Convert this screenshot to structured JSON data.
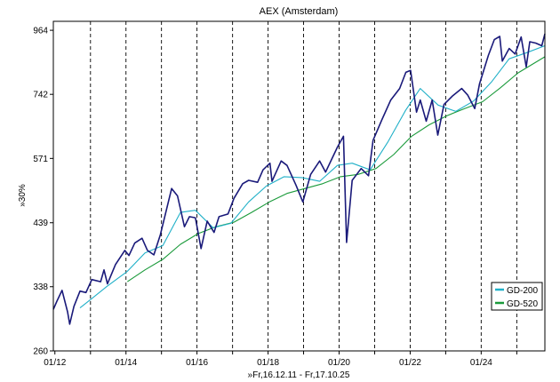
{
  "chart_data": {
    "type": "line",
    "title": "AEX (Amsterdam)",
    "xlabel": "»Fr,16.12.11 - Fr,17.10.25",
    "ylabel": "»30%",
    "y_scale": "log",
    "ylim": [
      260,
      1000
    ],
    "y_ticks": [
      260,
      338,
      439,
      571,
      742,
      964
    ],
    "x_range": [
      "2011-12-16",
      "2025-10-17"
    ],
    "x_ticks": [
      {
        "date": "2012-01-01",
        "label": "01/12"
      },
      {
        "date": "2013-01-01",
        "label": ""
      },
      {
        "date": "2014-01-01",
        "label": "01/14"
      },
      {
        "date": "2015-01-01",
        "label": ""
      },
      {
        "date": "2016-01-01",
        "label": "01/16"
      },
      {
        "date": "2017-01-01",
        "label": ""
      },
      {
        "date": "2018-01-01",
        "label": "01/18"
      },
      {
        "date": "2019-01-01",
        "label": ""
      },
      {
        "date": "2020-01-01",
        "label": "01/20"
      },
      {
        "date": "2021-01-01",
        "label": ""
      },
      {
        "date": "2022-01-01",
        "label": "01/22"
      },
      {
        "date": "2023-01-01",
        "label": ""
      },
      {
        "date": "2024-01-01",
        "label": "01/24"
      },
      {
        "date": "2025-01-01",
        "label": ""
      }
    ],
    "grid": "vertical dashed at year starts",
    "legend": {
      "placement": "bottom-right"
    },
    "colors": {
      "price": "#1a1a7a",
      "gd200": "#20b0c8",
      "gd520": "#1a9a3a"
    },
    "series": [
      {
        "name": "",
        "style": "price",
        "points": [
          [
            "2011-12-16",
            308
          ],
          [
            "2012-01-20",
            318
          ],
          [
            "2012-03-15",
            333
          ],
          [
            "2012-05-10",
            305
          ],
          [
            "2012-06-01",
            290
          ],
          [
            "2012-07-15",
            312
          ],
          [
            "2012-09-15",
            332
          ],
          [
            "2012-11-15",
            330
          ],
          [
            "2013-01-15",
            348
          ],
          [
            "2013-04-15",
            345
          ],
          [
            "2013-05-20",
            362
          ],
          [
            "2013-06-25",
            342
          ],
          [
            "2013-09-15",
            370
          ],
          [
            "2013-12-20",
            392
          ],
          [
            "2014-02-01",
            384
          ],
          [
            "2014-04-01",
            404
          ],
          [
            "2014-06-15",
            412
          ],
          [
            "2014-08-10",
            392
          ],
          [
            "2014-10-15",
            385
          ],
          [
            "2014-12-20",
            418
          ],
          [
            "2015-03-15",
            480
          ],
          [
            "2015-04-15",
            505
          ],
          [
            "2015-06-15",
            490
          ],
          [
            "2015-08-25",
            432
          ],
          [
            "2015-10-15",
            450
          ],
          [
            "2015-12-15",
            448
          ],
          [
            "2016-02-12",
            395
          ],
          [
            "2016-04-15",
            442
          ],
          [
            "2016-06-24",
            422
          ],
          [
            "2016-08-15",
            450
          ],
          [
            "2016-11-15",
            455
          ],
          [
            "2017-01-15",
            485
          ],
          [
            "2017-04-15",
            515
          ],
          [
            "2017-06-15",
            522
          ],
          [
            "2017-09-15",
            518
          ],
          [
            "2017-11-10",
            545
          ],
          [
            "2018-01-20",
            560
          ],
          [
            "2018-02-10",
            520
          ],
          [
            "2018-05-15",
            565
          ],
          [
            "2018-07-15",
            555
          ],
          [
            "2018-10-15",
            512
          ],
          [
            "2018-12-24",
            478
          ],
          [
            "2019-03-15",
            535
          ],
          [
            "2019-06-15",
            565
          ],
          [
            "2019-08-15",
            540
          ],
          [
            "2019-12-15",
            598
          ],
          [
            "2020-02-15",
            625
          ],
          [
            "2020-03-18",
            405
          ],
          [
            "2020-05-15",
            522
          ],
          [
            "2020-08-15",
            548
          ],
          [
            "2020-10-30",
            532
          ],
          [
            "2020-12-15",
            615
          ],
          [
            "2021-03-15",
            668
          ],
          [
            "2021-06-15",
            725
          ],
          [
            "2021-09-15",
            760
          ],
          [
            "2021-11-18",
            812
          ],
          [
            "2022-01-05",
            818
          ],
          [
            "2022-03-07",
            690
          ],
          [
            "2022-04-15",
            725
          ],
          [
            "2022-06-15",
            665
          ],
          [
            "2022-08-15",
            725
          ],
          [
            "2022-10-12",
            628
          ],
          [
            "2022-12-15",
            712
          ],
          [
            "2023-03-15",
            738
          ],
          [
            "2023-06-15",
            760
          ],
          [
            "2023-08-15",
            740
          ],
          [
            "2023-10-27",
            700
          ],
          [
            "2023-12-15",
            775
          ],
          [
            "2024-03-15",
            870
          ],
          [
            "2024-05-15",
            928
          ],
          [
            "2024-07-10",
            940
          ],
          [
            "2024-08-05",
            850
          ],
          [
            "2024-10-15",
            895
          ],
          [
            "2024-12-15",
            875
          ],
          [
            "2025-02-15",
            938
          ],
          [
            "2025-04-08",
            830
          ],
          [
            "2025-05-15",
            920
          ],
          [
            "2025-07-15",
            915
          ],
          [
            "2025-09-15",
            905
          ],
          [
            "2025-10-17",
            950
          ]
        ]
      },
      {
        "name": "GD-200",
        "style": "gd200",
        "points": [
          [
            "2012-09-15",
            310
          ],
          [
            "2013-01-15",
            322
          ],
          [
            "2013-06-15",
            338
          ],
          [
            "2014-01-15",
            360
          ],
          [
            "2014-07-15",
            388
          ],
          [
            "2015-01-15",
            400
          ],
          [
            "2015-07-15",
            458
          ],
          [
            "2015-12-15",
            462
          ],
          [
            "2016-06-15",
            430
          ],
          [
            "2016-12-15",
            438
          ],
          [
            "2017-06-15",
            478
          ],
          [
            "2017-12-15",
            510
          ],
          [
            "2018-06-15",
            530
          ],
          [
            "2018-12-15",
            528
          ],
          [
            "2019-06-15",
            520
          ],
          [
            "2019-12-15",
            555
          ],
          [
            "2020-05-15",
            560
          ],
          [
            "2020-11-15",
            545
          ],
          [
            "2021-05-15",
            610
          ],
          [
            "2021-11-15",
            695
          ],
          [
            "2022-04-15",
            760
          ],
          [
            "2022-10-15",
            710
          ],
          [
            "2023-04-15",
            692
          ],
          [
            "2023-10-15",
            722
          ],
          [
            "2024-04-15",
            780
          ],
          [
            "2024-10-15",
            858
          ],
          [
            "2025-04-15",
            880
          ],
          [
            "2025-10-17",
            905
          ]
        ]
      },
      {
        "name": "GD-520",
        "style": "gd520",
        "points": [
          [
            "2014-01-15",
            345
          ],
          [
            "2014-07-15",
            362
          ],
          [
            "2015-01-15",
            378
          ],
          [
            "2015-07-15",
            402
          ],
          [
            "2016-01-15",
            420
          ],
          [
            "2016-07-15",
            432
          ],
          [
            "2017-01-15",
            440
          ],
          [
            "2017-07-15",
            458
          ],
          [
            "2018-01-15",
            478
          ],
          [
            "2018-07-15",
            495
          ],
          [
            "2019-01-15",
            505
          ],
          [
            "2019-07-15",
            515
          ],
          [
            "2020-01-15",
            530
          ],
          [
            "2020-07-15",
            535
          ],
          [
            "2021-01-15",
            548
          ],
          [
            "2021-07-15",
            580
          ],
          [
            "2022-01-15",
            625
          ],
          [
            "2022-07-15",
            655
          ],
          [
            "2023-01-15",
            680
          ],
          [
            "2023-07-15",
            700
          ],
          [
            "2024-01-15",
            720
          ],
          [
            "2024-07-15",
            762
          ],
          [
            "2025-01-15",
            810
          ],
          [
            "2025-10-17",
            865
          ]
        ]
      }
    ]
  }
}
